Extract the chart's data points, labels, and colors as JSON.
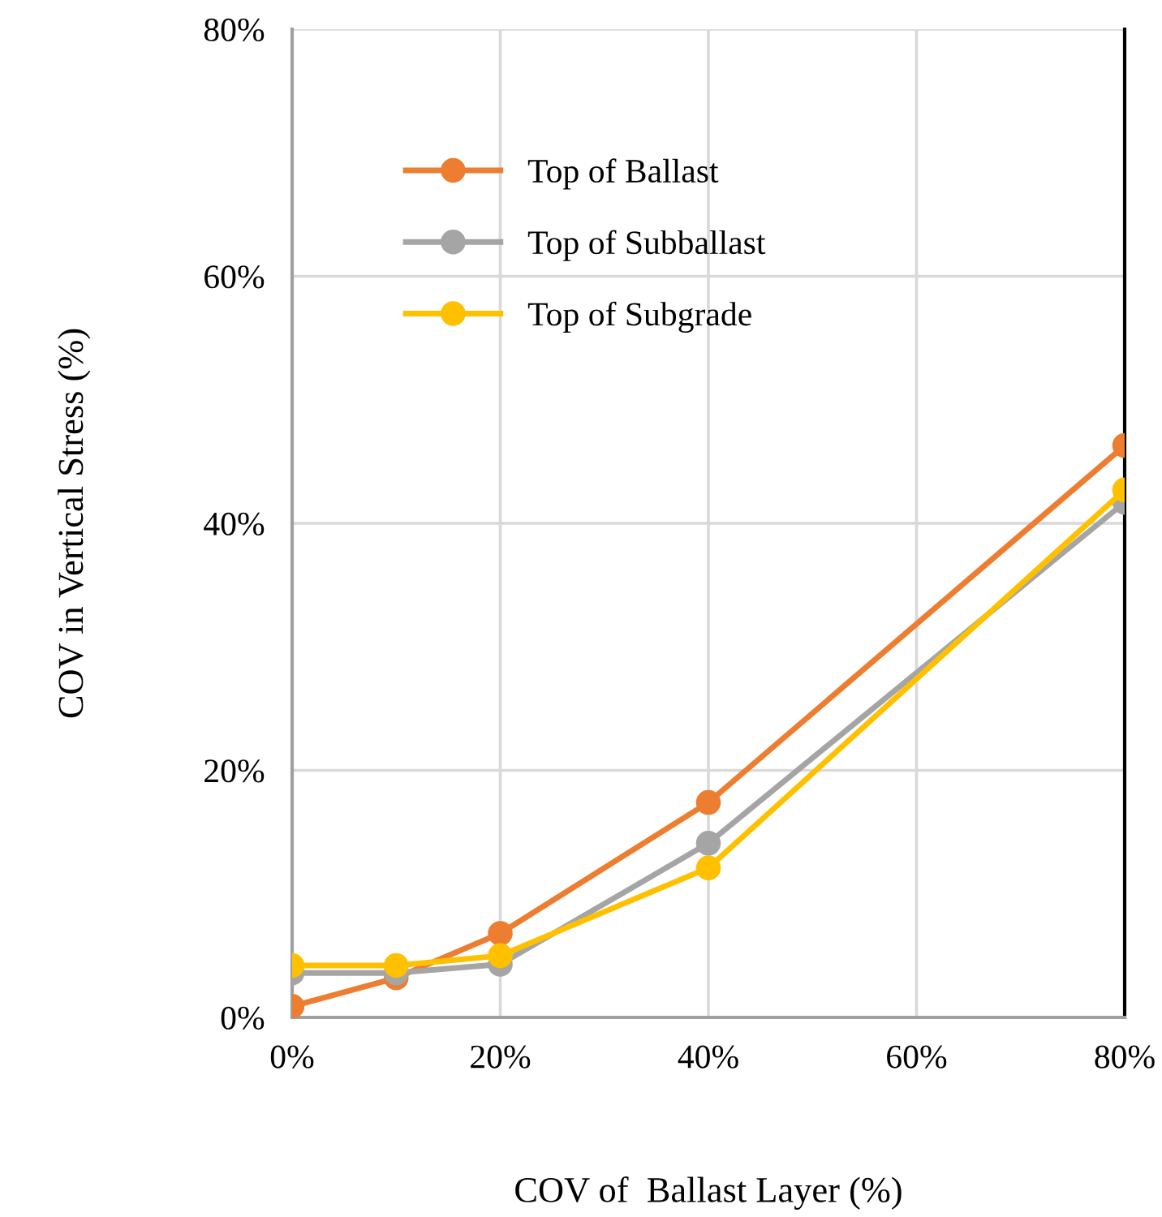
{
  "chart_data": {
    "type": "line",
    "xlabel": "COV of  Ballast Layer (%)",
    "ylabel": "COV in Vertical Stress (%)",
    "x": [
      0,
      10,
      20,
      40,
      80
    ],
    "series": [
      {
        "name": "Top of Ballast",
        "color": "#ed7d31",
        "values": [
          0.9,
          3.2,
          6.8,
          17.4,
          46.3
        ]
      },
      {
        "name": "Top of Subballast",
        "color": "#a5a5a5",
        "values": [
          3.6,
          3.6,
          4.3,
          14.1,
          41.7
        ]
      },
      {
        "name": "Top of Subgrade",
        "color": "#ffc000",
        "values": [
          4.2,
          4.2,
          5.0,
          12.1,
          42.7
        ]
      }
    ],
    "xlim": [
      0,
      80
    ],
    "ylim": [
      0,
      80
    ],
    "xticks": [
      {
        "value": 0,
        "label": "0%"
      },
      {
        "value": 20,
        "label": "20%"
      },
      {
        "value": 40,
        "label": "40%"
      },
      {
        "value": 60,
        "label": "60%"
      },
      {
        "value": 80,
        "label": "80%"
      }
    ],
    "yticks": [
      {
        "value": 0,
        "label": "0%"
      },
      {
        "value": 20,
        "label": "20%"
      },
      {
        "value": 40,
        "label": "40%"
      },
      {
        "value": 60,
        "label": "60%"
      },
      {
        "value": 80,
        "label": "80%"
      }
    ],
    "grid": true,
    "legend": "top left",
    "marker": "circle",
    "line_style": "solid"
  }
}
